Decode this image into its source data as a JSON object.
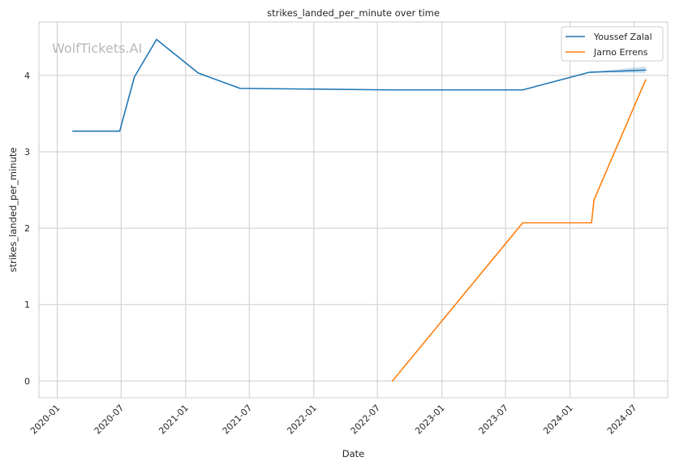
{
  "chart_data": {
    "type": "line",
    "title": "strikes_landed_per_minute over time",
    "xlabel": "Date",
    "ylabel": "strikes_landed_per_minute",
    "watermark": "WolfTickets.AI",
    "x_type": "date",
    "xlim": [
      "2019-11-10",
      "2024-10-05"
    ],
    "ylim": [
      -0.22,
      4.7
    ],
    "x_ticks": [
      {
        "date": "2020-01-01",
        "label": "2020-01"
      },
      {
        "date": "2020-07-01",
        "label": "2020-07"
      },
      {
        "date": "2021-01-01",
        "label": "2021-01"
      },
      {
        "date": "2021-07-01",
        "label": "2021-07"
      },
      {
        "date": "2022-01-01",
        "label": "2022-01"
      },
      {
        "date": "2022-07-01",
        "label": "2022-07"
      },
      {
        "date": "2023-01-01",
        "label": "2023-01"
      },
      {
        "date": "2023-07-01",
        "label": "2023-07"
      },
      {
        "date": "2024-01-01",
        "label": "2024-01"
      },
      {
        "date": "2024-07-01",
        "label": "2024-07"
      }
    ],
    "y_ticks": [
      0,
      1,
      2,
      3,
      4
    ],
    "grid": true,
    "legend_position": "top-right",
    "series": [
      {
        "name": "Youssef Zalal",
        "color": "#1f77b4",
        "band_color": "#1f77b4",
        "points": [
          {
            "x": "2020-02-15",
            "y": 3.27
          },
          {
            "x": "2020-06-27",
            "y": 3.27
          },
          {
            "x": "2020-08-08",
            "y": 3.98
          },
          {
            "x": "2020-10-10",
            "y": 4.47
          },
          {
            "x": "2021-02-06",
            "y": 4.03
          },
          {
            "x": "2021-06-05",
            "y": 3.83
          },
          {
            "x": "2022-08-06",
            "y": 3.81
          },
          {
            "x": "2023-08-19",
            "y": 3.81
          },
          {
            "x": "2024-02-24",
            "y": 4.04
          },
          {
            "x": "2024-08-03",
            "y": 4.07
          }
        ],
        "band": [
          {
            "x": "2024-02-24",
            "low": 4.04,
            "high": 4.04
          },
          {
            "x": "2024-08-03",
            "low": 4.03,
            "high": 4.12
          }
        ]
      },
      {
        "name": "Jarno Errens",
        "color": "#ff7f0e",
        "points": [
          {
            "x": "2022-08-13",
            "y": 0.0
          },
          {
            "x": "2023-08-19",
            "y": 2.07
          },
          {
            "x": "2024-03-02",
            "y": 2.07
          },
          {
            "x": "2024-03-09",
            "y": 2.37
          },
          {
            "x": "2024-08-03",
            "y": 3.94
          }
        ]
      }
    ]
  }
}
